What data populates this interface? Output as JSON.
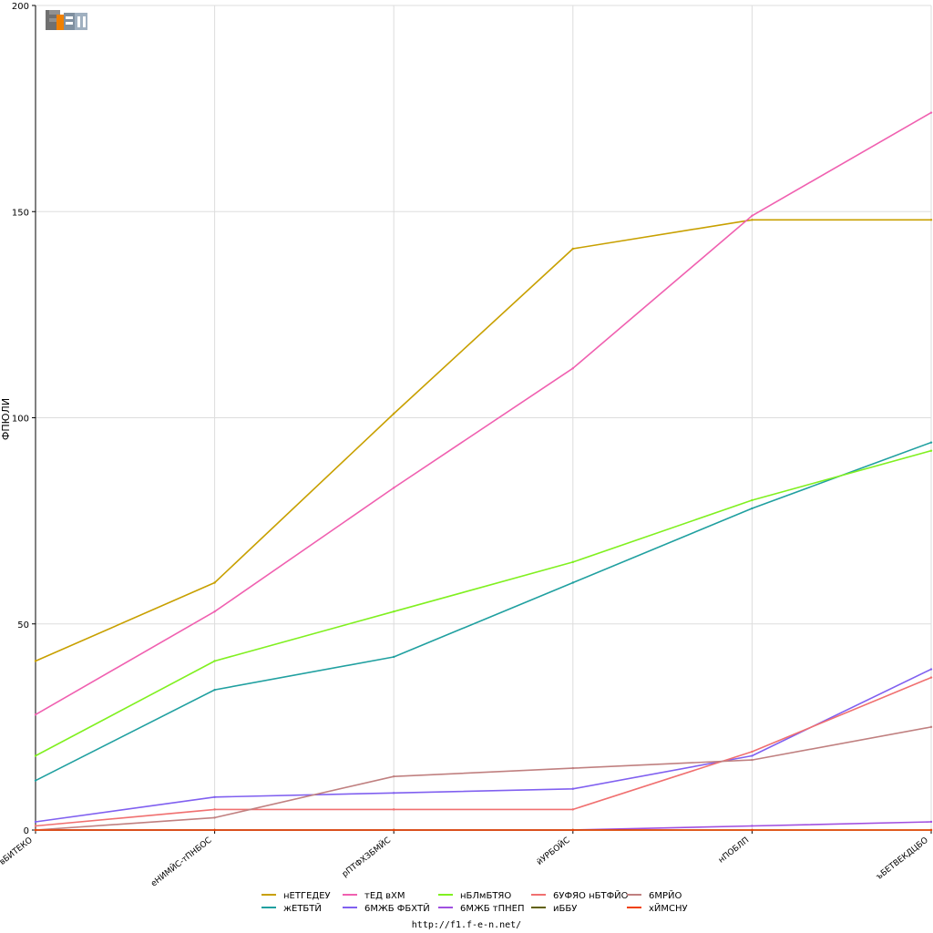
{
  "chart_data": {
    "type": "line",
    "ylabel": "ФПЮЛИ",
    "ylim": [
      0,
      200
    ],
    "yticks": [
      0,
      50,
      100,
      150,
      200
    ],
    "grid": true,
    "legend_position": "bottom",
    "categories": [
      "вБИТЕКО",
      "еНИМЙС-тПНБОС",
      "рПТФХЗБМЙС",
      "йУРБОЙС",
      "нПОБЛП",
      "ъБЕТВЕКДЦБО"
    ],
    "series": [
      {
        "name": "нЕТГЕДЕУ",
        "color": "#c8a000",
        "values": [
          41,
          60,
          101,
          141,
          148,
          148
        ]
      },
      {
        "name": "жЕТБТЙ",
        "color": "#20a0a0",
        "values": [
          12,
          34,
          42,
          60,
          78,
          94
        ]
      },
      {
        "name": "тЕД вХМ",
        "color": "#f060b0",
        "values": [
          28,
          53,
          83,
          112,
          149,
          174
        ]
      },
      {
        "name": "6МЖБ ФБХТЙ",
        "color": "#8060f0",
        "values": [
          2,
          8,
          9,
          10,
          18,
          39
        ]
      },
      {
        "name": "нБЛмБТЯО",
        "color": "#80f020",
        "values": [
          18,
          41,
          53,
          65,
          80,
          92
        ]
      },
      {
        "name": "6МЖБ тПНЕП",
        "color": "#a050e0",
        "values": [
          0,
          0,
          0,
          0,
          1,
          2
        ]
      },
      {
        "name": "6УФЯО нБТФЙО",
        "color": "#f07070",
        "values": [
          1,
          5,
          5,
          5,
          19,
          37
        ]
      },
      {
        "name": "иББУ",
        "color": "#606000",
        "values": [
          0,
          0,
          0,
          0,
          0,
          0
        ]
      },
      {
        "name": "6МРЙО",
        "color": "#c08080",
        "values": [
          0,
          3,
          13,
          15,
          17,
          25
        ]
      },
      {
        "name": "хЙМСНУ",
        "color": "#f04000",
        "values": [
          0,
          0,
          0,
          0,
          0,
          0
        ]
      }
    ]
  },
  "logo": {
    "text": "F1EN"
  },
  "footer": {
    "url": "http://f1.f-e-n.net/"
  }
}
